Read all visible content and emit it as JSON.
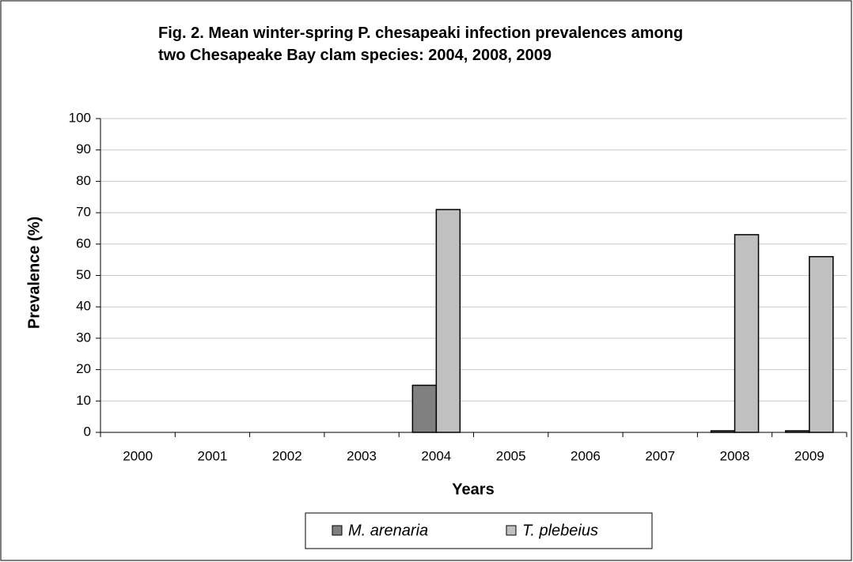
{
  "chart_data": {
    "type": "bar",
    "title": "Fig. 2.  Mean winter-spring P. chesapeaki infection prevalences among two Chesapeake Bay clam species: 2004, 2008, 2009",
    "x_label": "Years",
    "y_label": "Prevalence (%)",
    "categories": [
      "2000",
      "2001",
      "2002",
      "2003",
      "2004",
      "2005",
      "2006",
      "2007",
      "2008",
      "2009"
    ],
    "series": [
      {
        "name": "M. arenaria",
        "color": "#808080",
        "values": [
          null,
          null,
          null,
          null,
          15,
          null,
          null,
          null,
          0.5,
          0.5
        ]
      },
      {
        "name": "T. plebeius",
        "color": "#c0c0c0",
        "values": [
          null,
          null,
          null,
          null,
          71,
          null,
          null,
          null,
          63,
          56
        ]
      }
    ],
    "ylim": [
      0,
      100
    ],
    "yticks": [
      0,
      10,
      20,
      30,
      40,
      50,
      60,
      70,
      80,
      90,
      100
    ],
    "grid": true,
    "legend": "bottom"
  }
}
